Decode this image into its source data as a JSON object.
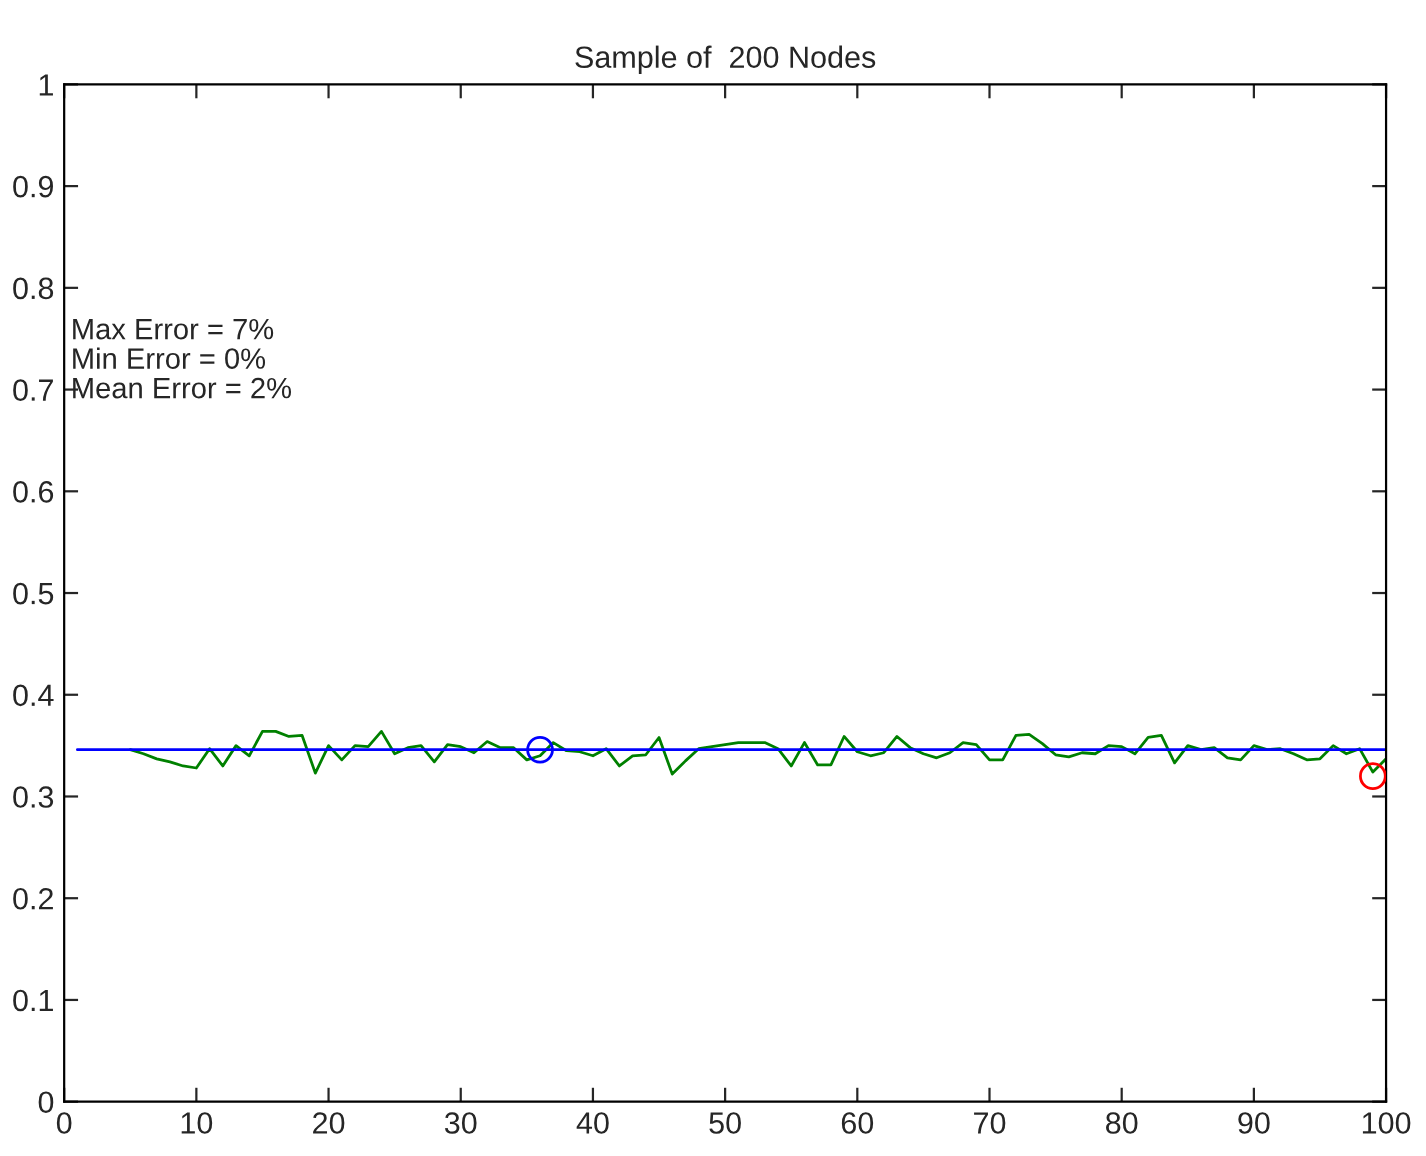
{
  "chart_data": {
    "type": "line",
    "title": "Sample of  200 Nodes",
    "xlim": [
      0,
      100
    ],
    "xticks": [
      0,
      10,
      20,
      30,
      40,
      50,
      60,
      70,
      80,
      90,
      100
    ],
    "ylim": [
      0,
      1
    ],
    "yticks": [
      0,
      0.1,
      0.2,
      0.3,
      0.4,
      0.5,
      0.6,
      0.7,
      0.8,
      0.9,
      1
    ],
    "grid": false,
    "legend": false,
    "annotations": [
      "Max Error = 7%",
      "Min Error = 0%",
      "Mean Error = 2%"
    ],
    "series": [
      {
        "color": "#008000",
        "x": [
          5,
          6,
          7,
          8,
          9,
          10,
          11,
          12,
          13,
          14,
          15,
          16,
          17,
          18,
          19,
          20,
          21,
          22,
          23,
          24,
          25,
          26,
          27,
          28,
          29,
          30,
          31,
          32,
          33,
          34,
          35,
          36,
          37,
          38,
          39,
          40,
          41,
          42,
          43,
          44,
          45,
          46,
          47,
          48,
          49,
          50,
          51,
          52,
          53,
          54,
          55,
          56,
          57,
          58,
          59,
          60,
          61,
          62,
          63,
          64,
          65,
          66,
          67,
          68,
          69,
          70,
          71,
          72,
          73,
          74,
          75,
          76,
          77,
          78,
          79,
          80,
          81,
          82,
          83,
          84,
          85,
          86,
          87,
          88,
          89,
          90,
          91,
          92,
          93,
          94,
          95,
          96,
          97,
          98,
          99,
          100
        ],
        "values": [
          0.346,
          0.342,
          0.337,
          0.334,
          0.33,
          0.328,
          0.347,
          0.33,
          0.35,
          0.34,
          0.364,
          0.364,
          0.359,
          0.36,
          0.323,
          0.35,
          0.336,
          0.35,
          0.349,
          0.364,
          0.342,
          0.348,
          0.35,
          0.334,
          0.351,
          0.349,
          0.343,
          0.354,
          0.348,
          0.348,
          0.336,
          0.34,
          0.353,
          0.345,
          0.344,
          0.34,
          0.347,
          0.33,
          0.34,
          0.341,
          0.358,
          0.322,
          0.335,
          0.347,
          0.349,
          0.351,
          0.353,
          0.353,
          0.353,
          0.347,
          0.33,
          0.353,
          0.331,
          0.331,
          0.359,
          0.344,
          0.34,
          0.343,
          0.359,
          0.348,
          0.342,
          0.338,
          0.343,
          0.353,
          0.351,
          0.336,
          0.336,
          0.36,
          0.361,
          0.352,
          0.341,
          0.339,
          0.343,
          0.342,
          0.35,
          0.349,
          0.342,
          0.358,
          0.36,
          0.333,
          0.35,
          0.346,
          0.348,
          0.338,
          0.336,
          0.35,
          0.346,
          0.347,
          0.342,
          0.336,
          0.337,
          0.35,
          0.342,
          0.347,
          0.324,
          0.337
        ]
      },
      {
        "color": "#0000ff",
        "x": [
          1,
          100
        ],
        "values": [
          0.346,
          0.346
        ]
      },
      {
        "type": "scatter",
        "color": "#0000ff",
        "marker": "circle",
        "x": [
          36
        ],
        "values": [
          0.346
        ]
      },
      {
        "type": "scatter",
        "color": "#ff0000",
        "marker": "circle",
        "x": [
          99
        ],
        "values": [
          0.32
        ]
      }
    ]
  }
}
